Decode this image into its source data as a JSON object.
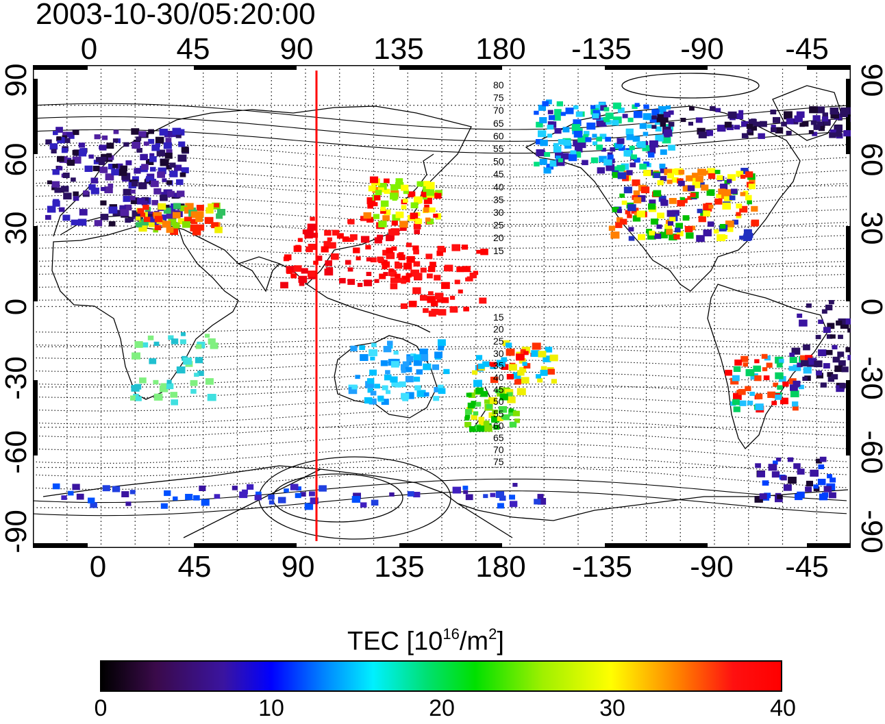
{
  "title": "2003-10-30/05:20:00",
  "map": {
    "lon_ticks": [
      "0",
      "45",
      "90",
      "135",
      "180",
      "-135",
      "-90",
      "-45"
    ],
    "lat_ticks": [
      "90",
      "60",
      "30",
      "0",
      "-30",
      "-60",
      "-90"
    ],
    "meridian_marker_lon": 100,
    "contour_labels_north": [
      "80",
      "75",
      "70",
      "65",
      "60",
      "55",
      "50",
      "45",
      "40",
      "35",
      "30",
      "25",
      "20",
      "15"
    ],
    "contour_labels_south": [
      "15",
      "20",
      "25",
      "30",
      "35",
      "40",
      "45",
      "50",
      "55",
      "60",
      "65",
      "70",
      "75"
    ],
    "colors": {
      "marker": "#ff0000",
      "grid": "#000000"
    }
  },
  "colorbar": {
    "title_main": "TEC  [10",
    "title_sup1": "16",
    "title_mid": "/m",
    "title_sup2": "2",
    "title_end": "]",
    "ticks": [
      "0",
      "10",
      "20",
      "30",
      "40"
    ],
    "range": [
      0,
      40
    ]
  }
}
